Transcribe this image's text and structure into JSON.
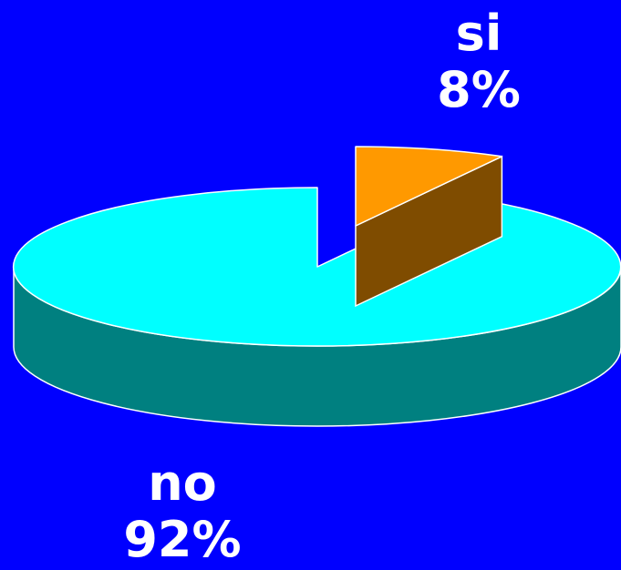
{
  "chart_data": {
    "type": "pie",
    "three_d": true,
    "title": "",
    "slices": [
      {
        "label": "si",
        "value": 8,
        "value_label": "8%",
        "color": "#ff9900",
        "side_color": "#7f4c00",
        "exploded": true
      },
      {
        "label": "no",
        "value": 92,
        "value_label": "92%",
        "color": "#00ffff",
        "side_color": "#008080",
        "exploded": false
      }
    ],
    "legend": "none"
  }
}
